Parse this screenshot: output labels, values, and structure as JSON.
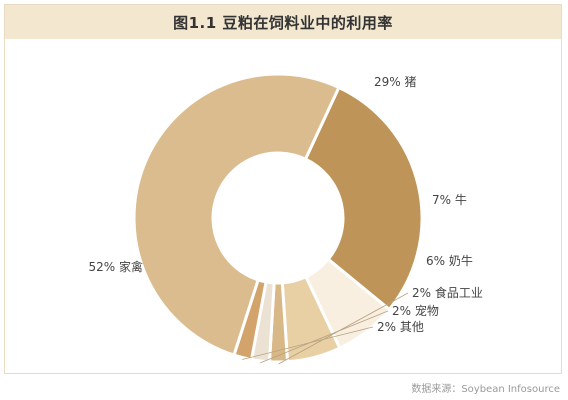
{
  "chart_data": {
    "type": "pie",
    "title": "图1.1 豆粕在饲料业中的利用率",
    "slices": [
      {
        "name": "猪",
        "value": 29,
        "label": "29% 猪",
        "color": "#bf9458"
      },
      {
        "name": "牛",
        "value": 7,
        "label": "7% 牛",
        "color": "#f8efe0"
      },
      {
        "name": "奶牛",
        "value": 6,
        "label": "6% 奶牛",
        "color": "#e8cfa4"
      },
      {
        "name": "食品工业",
        "value": 2,
        "label": "2% 食品工业",
        "color": "#d8b886"
      },
      {
        "name": "宠物",
        "value": 2,
        "label": "2% 宠物",
        "color": "#ebe2d4"
      },
      {
        "name": "其他",
        "value": 2,
        "label": "2% 其他",
        "color": "#d2a36a"
      },
      {
        "name": "家禽",
        "value": 52,
        "label": "52% 家禽",
        "color": "#dbbc8e"
      }
    ]
  },
  "source": "数据来源：Soybean Infosource"
}
